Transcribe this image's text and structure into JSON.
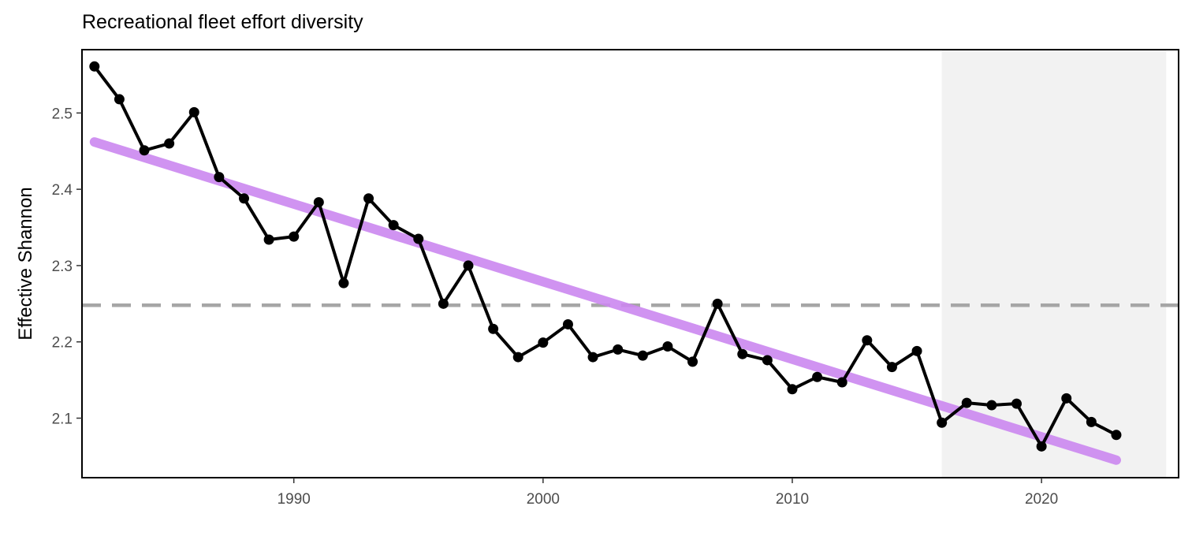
{
  "chart_data": {
    "type": "line",
    "title": "Recreational fleet effort diversity",
    "xlabel": "",
    "ylabel": "Effective Shannon",
    "xlim": [
      1981.5,
      2025.5
    ],
    "ylim": [
      2.022,
      2.583
    ],
    "x_ticks": [
      1990,
      2000,
      2010,
      2020
    ],
    "y_ticks": [
      2.1,
      2.2,
      2.3,
      2.4,
      2.5
    ],
    "y_tick_labels": [
      "2.1",
      "2.2",
      "2.3",
      "2.4",
      "2.5"
    ],
    "grid": false,
    "series": [
      {
        "x": [
          1982,
          1983,
          1984,
          1985,
          1986,
          1987,
          1988,
          1989,
          1990,
          1991,
          1992,
          1993,
          1994,
          1995,
          1996,
          1997,
          1998,
          1999,
          2000,
          2001,
          2002,
          2003,
          2004,
          2005,
          2006,
          2007,
          2008,
          2009,
          2010,
          2011,
          2012,
          2013,
          2014,
          2015,
          2016,
          2017,
          2018,
          2019,
          2020,
          2021,
          2022,
          2023
        ],
        "values": [
          2.561,
          2.518,
          2.451,
          2.46,
          2.501,
          2.416,
          2.388,
          2.334,
          2.338,
          2.383,
          2.277,
          2.388,
          2.353,
          2.335,
          2.25,
          2.3,
          2.217,
          2.18,
          2.199,
          2.223,
          2.18,
          2.19,
          2.182,
          2.194,
          2.174,
          2.25,
          2.184,
          2.176,
          2.138,
          2.154,
          2.147,
          2.202,
          2.167,
          2.188,
          2.094,
          2.12,
          2.117,
          2.119,
          2.063,
          2.126,
          2.095,
          2.078
        ],
        "color": "#000000"
      }
    ],
    "trend_line": {
      "x": [
        1982,
        2023
      ],
      "values": [
        2.462,
        2.045
      ],
      "color": "#cc88f0"
    },
    "mean_line": {
      "value": 2.248,
      "color": "#a6a6a6",
      "style": "dashed"
    },
    "shaded_region": {
      "x": [
        2016,
        2025
      ],
      "color": "#f2f2f2"
    }
  }
}
